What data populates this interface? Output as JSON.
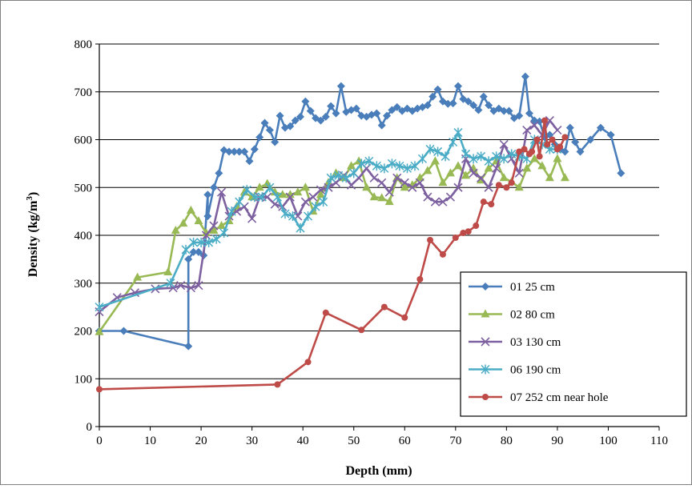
{
  "chart_data": {
    "type": "line",
    "xlabel": "Depth (mm)",
    "ylabel": "Density (kg/m",
    "ylabel_sup": "3",
    "ylabel_suffix": ")",
    "xlim": [
      0,
      110
    ],
    "ylim": [
      0,
      800
    ],
    "x_ticks": [
      "0",
      "10",
      "20",
      "30",
      "40",
      "50",
      "60",
      "70",
      "80",
      "90",
      "100",
      "110"
    ],
    "y_ticks": [
      "0",
      "100",
      "200",
      "300",
      "400",
      "500",
      "600",
      "700",
      "800"
    ],
    "grid": "horizontal",
    "legend_position": "bottom-right",
    "series": [
      {
        "name": "01 25 cm",
        "color": "#4a7ebb",
        "marker": "diamond",
        "points": [
          [
            0,
            200
          ],
          [
            4.8,
            200
          ],
          [
            17.5,
            168
          ],
          [
            17.5,
            350
          ],
          [
            18.5,
            365
          ],
          [
            19.5,
            365
          ],
          [
            20.5,
            358
          ],
          [
            21.3,
            485
          ],
          [
            21.3,
            440
          ],
          [
            22.5,
            500
          ],
          [
            23.5,
            530
          ],
          [
            24.5,
            578
          ],
          [
            25.5,
            575
          ],
          [
            26.5,
            575
          ],
          [
            27.5,
            575
          ],
          [
            28.5,
            575
          ],
          [
            29.5,
            555
          ],
          [
            30.5,
            580
          ],
          [
            31.5,
            605
          ],
          [
            32.5,
            635
          ],
          [
            33.5,
            620
          ],
          [
            34.5,
            595
          ],
          [
            35.5,
            650
          ],
          [
            36.5,
            625
          ],
          [
            37.5,
            628
          ],
          [
            38.5,
            640
          ],
          [
            39.5,
            648
          ],
          [
            40.5,
            680
          ],
          [
            41.5,
            660
          ],
          [
            42.5,
            645
          ],
          [
            43.5,
            640
          ],
          [
            44.5,
            648
          ],
          [
            45.5,
            670
          ],
          [
            46.5,
            655
          ],
          [
            47.5,
            712
          ],
          [
            48.5,
            658
          ],
          [
            49.5,
            662
          ],
          [
            50.5,
            665
          ],
          [
            51.5,
            650
          ],
          [
            52.5,
            648
          ],
          [
            53.5,
            652
          ],
          [
            54.5,
            655
          ],
          [
            55.5,
            630
          ],
          [
            56.5,
            650
          ],
          [
            57.5,
            662
          ],
          [
            58.5,
            668
          ],
          [
            59.5,
            660
          ],
          [
            60.5,
            665
          ],
          [
            61.5,
            660
          ],
          [
            62.5,
            665
          ],
          [
            63.5,
            668
          ],
          [
            64.5,
            672
          ],
          [
            65.5,
            690
          ],
          [
            66.5,
            705
          ],
          [
            67.5,
            680
          ],
          [
            68.5,
            675
          ],
          [
            69.5,
            676
          ],
          [
            70.5,
            712
          ],
          [
            71.5,
            685
          ],
          [
            72.5,
            680
          ],
          [
            73.5,
            672
          ],
          [
            74.5,
            662
          ],
          [
            75.5,
            690
          ],
          [
            76.5,
            672
          ],
          [
            77.5,
            660
          ],
          [
            78.5,
            665
          ],
          [
            79.5,
            660
          ],
          [
            80.5,
            660
          ],
          [
            81.5,
            645
          ],
          [
            82.5,
            650
          ],
          [
            83.7,
            732
          ],
          [
            84.5,
            655
          ],
          [
            85.5,
            640
          ],
          [
            86.5,
            638
          ],
          [
            87.5,
            605
          ],
          [
            88.5,
            610
          ],
          [
            89.5,
            590
          ],
          [
            90.5,
            580
          ],
          [
            91.5,
            575
          ],
          [
            92.5,
            625
          ],
          [
            93.5,
            595
          ],
          [
            94.5,
            575
          ],
          [
            96.5,
            600
          ],
          [
            98.5,
            625
          ],
          [
            100.5,
            610
          ],
          [
            102.5,
            530
          ]
        ]
      },
      {
        "name": "02 80 cm",
        "color": "#98b954",
        "marker": "triangle",
        "points": [
          [
            0,
            198
          ],
          [
            7.5,
            312
          ],
          [
            13.5,
            323
          ],
          [
            15,
            410
          ],
          [
            16.5,
            425
          ],
          [
            18,
            452
          ],
          [
            19.5,
            430
          ],
          [
            21,
            405
          ],
          [
            22.5,
            410
          ],
          [
            24,
            420
          ],
          [
            25.5,
            430
          ],
          [
            27,
            460
          ],
          [
            28.5,
            490
          ],
          [
            30,
            480
          ],
          [
            31.5,
            500
          ],
          [
            33,
            508
          ],
          [
            34.5,
            490
          ],
          [
            36,
            485
          ],
          [
            37.5,
            485
          ],
          [
            39,
            490
          ],
          [
            40.5,
            500
          ],
          [
            42,
            450
          ],
          [
            43.5,
            485
          ],
          [
            45,
            510
          ],
          [
            46.5,
            530
          ],
          [
            48,
            520
          ],
          [
            49.5,
            545
          ],
          [
            51,
            555
          ],
          [
            52.5,
            500
          ],
          [
            54,
            480
          ],
          [
            55.5,
            478
          ],
          [
            57,
            470
          ],
          [
            58.5,
            520
          ],
          [
            60,
            500
          ],
          [
            61.5,
            505
          ],
          [
            63,
            520
          ],
          [
            64.5,
            535
          ],
          [
            66,
            555
          ],
          [
            67.5,
            510
          ],
          [
            69,
            530
          ],
          [
            70.5,
            545
          ],
          [
            72,
            525
          ],
          [
            73.5,
            540
          ],
          [
            75,
            515
          ],
          [
            76.5,
            540
          ],
          [
            78,
            555
          ],
          [
            79.5,
            520
          ],
          [
            81,
            512
          ],
          [
            82.5,
            500
          ],
          [
            84,
            540
          ],
          [
            85.5,
            560
          ],
          [
            87,
            545
          ],
          [
            88.5,
            520
          ],
          [
            90,
            560
          ],
          [
            91.5,
            520
          ]
        ]
      },
      {
        "name": "03 130 cm",
        "color": "#7d60a0",
        "marker": "x",
        "points": [
          [
            0,
            240
          ],
          [
            3.5,
            270
          ],
          [
            7,
            280
          ],
          [
            11,
            288
          ],
          [
            14.5,
            290
          ],
          [
            16,
            295
          ],
          [
            18,
            290
          ],
          [
            19.5,
            295
          ],
          [
            21,
            400
          ],
          [
            22.5,
            420
          ],
          [
            24,
            490
          ],
          [
            25.5,
            440
          ],
          [
            27,
            450
          ],
          [
            28.5,
            460
          ],
          [
            30,
            435
          ],
          [
            31.5,
            480
          ],
          [
            33,
            480
          ],
          [
            34.5,
            465
          ],
          [
            36,
            460
          ],
          [
            37.5,
            480
          ],
          [
            39,
            440
          ],
          [
            40.5,
            470
          ],
          [
            42,
            480
          ],
          [
            43.5,
            495
          ],
          [
            45,
            500
          ],
          [
            46.5,
            510
          ],
          [
            48,
            525
          ],
          [
            49.5,
            505
          ],
          [
            51,
            520
          ],
          [
            52.5,
            540
          ],
          [
            54,
            520
          ],
          [
            55.5,
            510
          ],
          [
            57,
            490
          ],
          [
            58.5,
            520
          ],
          [
            60,
            510
          ],
          [
            61.5,
            500
          ],
          [
            63,
            510
          ],
          [
            64.5,
            480
          ],
          [
            66,
            470
          ],
          [
            67.5,
            470
          ],
          [
            69,
            480
          ],
          [
            70.5,
            500
          ],
          [
            72,
            560
          ],
          [
            73.5,
            530
          ],
          [
            75,
            520
          ],
          [
            76.5,
            500
          ],
          [
            78,
            540
          ],
          [
            79.5,
            590
          ],
          [
            81,
            560
          ],
          [
            82.5,
            530
          ],
          [
            84,
            620
          ],
          [
            85.5,
            630
          ],
          [
            87,
            610
          ],
          [
            88.5,
            640
          ],
          [
            90,
            620
          ]
        ]
      },
      {
        "name": "06 190 cm",
        "color": "#4bacc6",
        "marker": "star",
        "points": [
          [
            0,
            250
          ],
          [
            14,
            300
          ],
          [
            17,
            370
          ],
          [
            18.5,
            385
          ],
          [
            20,
            385
          ],
          [
            21.5,
            385
          ],
          [
            23,
            392
          ],
          [
            24.5,
            405
          ],
          [
            26,
            450
          ],
          [
            27.5,
            470
          ],
          [
            29,
            495
          ],
          [
            30.5,
            480
          ],
          [
            32,
            480
          ],
          [
            33.5,
            500
          ],
          [
            35,
            480
          ],
          [
            36.5,
            445
          ],
          [
            38,
            440
          ],
          [
            39.5,
            415
          ],
          [
            41,
            440
          ],
          [
            42.5,
            460
          ],
          [
            44,
            470
          ],
          [
            45.5,
            520
          ],
          [
            47,
            525
          ],
          [
            48.5,
            520
          ],
          [
            50,
            530
          ],
          [
            51.5,
            550
          ],
          [
            53,
            555
          ],
          [
            54.5,
            545
          ],
          [
            56,
            540
          ],
          [
            57.5,
            550
          ],
          [
            59,
            545
          ],
          [
            60.5,
            540
          ],
          [
            62,
            545
          ],
          [
            63.5,
            560
          ],
          [
            65,
            580
          ],
          [
            66.5,
            575
          ],
          [
            68,
            565
          ],
          [
            69.5,
            595
          ],
          [
            70.5,
            615
          ],
          [
            72,
            570
          ],
          [
            73.5,
            560
          ],
          [
            75,
            565
          ],
          [
            76.5,
            555
          ],
          [
            78,
            565
          ],
          [
            79.5,
            560
          ],
          [
            81,
            570
          ],
          [
            82.5,
            565
          ],
          [
            84,
            560
          ],
          [
            85.5,
            600
          ],
          [
            87,
            590
          ],
          [
            88.5,
            580
          ],
          [
            90,
            580
          ]
        ]
      },
      {
        "name": "07 252 cm near hole",
        "color": "#be4b48",
        "marker": "circle",
        "points": [
          [
            0,
            78
          ],
          [
            35,
            88
          ],
          [
            41,
            135
          ],
          [
            44.5,
            238
          ],
          [
            51.5,
            202
          ],
          [
            56,
            250
          ],
          [
            60,
            228
          ],
          [
            63,
            308
          ],
          [
            65,
            390
          ],
          [
            67.5,
            360
          ],
          [
            70,
            395
          ],
          [
            71.5,
            405
          ],
          [
            72.5,
            408
          ],
          [
            74,
            420
          ],
          [
            75.5,
            470
          ],
          [
            77,
            465
          ],
          [
            78.5,
            505
          ],
          [
            80,
            500
          ],
          [
            81,
            510
          ],
          [
            82.5,
            575
          ],
          [
            83.5,
            580
          ],
          [
            84.5,
            570
          ],
          [
            85,
            575
          ],
          [
            86,
            600
          ],
          [
            86.5,
            565
          ],
          [
            87.5,
            640
          ],
          [
            88,
            590
          ],
          [
            89,
            600
          ],
          [
            90,
            580
          ],
          [
            90.5,
            585
          ],
          [
            91.5,
            605
          ]
        ]
      }
    ]
  }
}
